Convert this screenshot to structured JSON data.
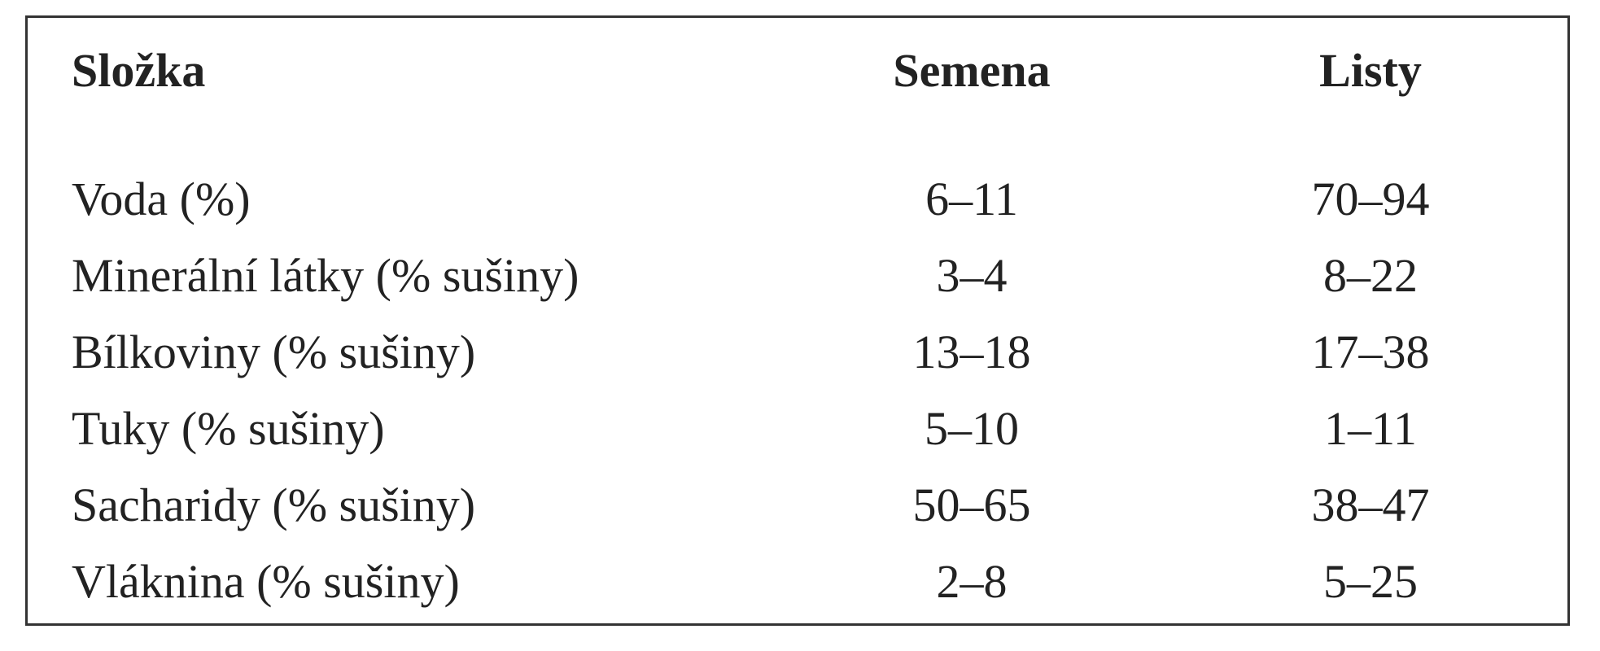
{
  "table": {
    "header": [
      "Složka",
      "Semena",
      "Listy"
    ],
    "rows": [
      [
        "Voda (%)",
        "6–11",
        "70–94"
      ],
      [
        "Minerální látky (% sušiny)",
        "3–4",
        "8–22"
      ],
      [
        "Bílkoviny (% sušiny)",
        "13–18",
        "17–38"
      ],
      [
        "Tuky (% sušiny)",
        "5–10",
        "1–11"
      ],
      [
        "Sacharidy (% sušiny)",
        "50–65",
        "38–47"
      ],
      [
        "Vláknina (% sušiny)",
        "2–8",
        "5–25"
      ]
    ]
  }
}
